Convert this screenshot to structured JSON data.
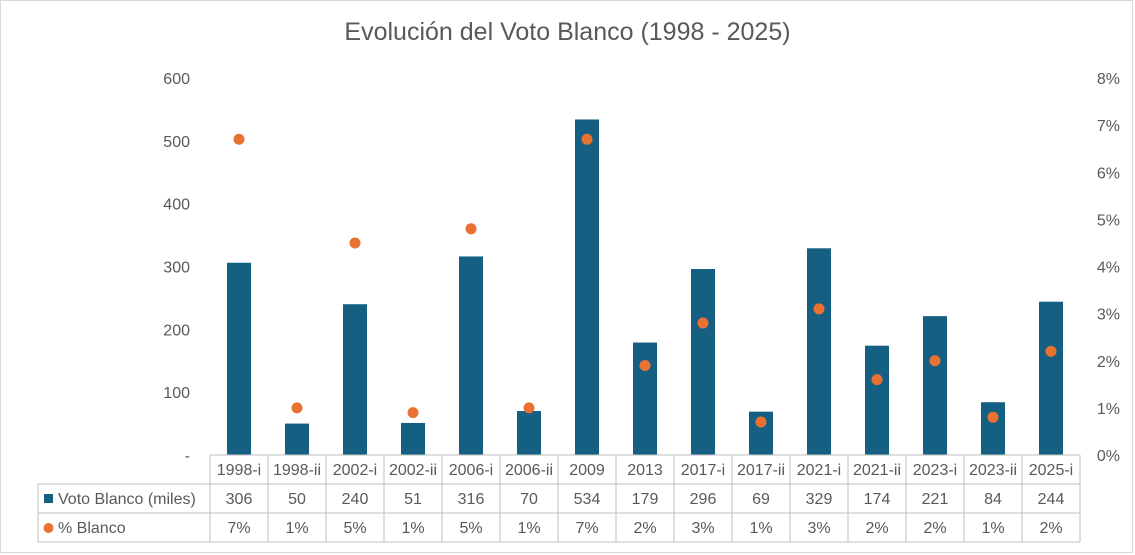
{
  "chart_data": {
    "type": "bar",
    "title": "Evolución del Voto Blanco (1998 - 2025)",
    "categories": [
      "1998-i",
      "1998-ii",
      "2002-i",
      "2002-ii",
      "2006-i",
      "2006-ii",
      "2009",
      "2013",
      "2017-i",
      "2017-ii",
      "2021-i",
      "2021-ii",
      "2023-i",
      "2023-ii",
      "2025-i"
    ],
    "series": [
      {
        "name": "Voto Blanco (miles)",
        "type": "bar",
        "axis": "left",
        "color": "#156082",
        "values": [
          306,
          50,
          240,
          51,
          316,
          70,
          534,
          179,
          296,
          69,
          329,
          174,
          221,
          84,
          244
        ],
        "table_labels": [
          "306",
          "50",
          "240",
          "51",
          "316",
          "70",
          "534",
          "179",
          "296",
          "69",
          "329",
          "174",
          "221",
          "84",
          "244"
        ]
      },
      {
        "name": "% Blanco",
        "type": "scatter",
        "axis": "right",
        "color": "#E97132",
        "values": [
          6.7,
          1.0,
          4.5,
          0.9,
          4.8,
          1.0,
          6.7,
          1.9,
          2.8,
          0.7,
          3.1,
          1.6,
          2.0,
          0.8,
          2.2
        ],
        "table_labels": [
          "7%",
          "1%",
          "5%",
          "1%",
          "5%",
          "1%",
          "7%",
          "2%",
          "3%",
          "1%",
          "3%",
          "2%",
          "2%",
          "1%",
          "2%"
        ]
      }
    ],
    "y_left": {
      "ylim": [
        0,
        600
      ],
      "ticks": [
        0,
        100,
        200,
        300,
        400,
        500,
        600
      ],
      "tick_labels": [
        "-",
        "100",
        "200",
        "300",
        "400",
        "500",
        "600"
      ]
    },
    "y_right": {
      "ylim": [
        0,
        8
      ],
      "ticks": [
        0,
        1,
        2,
        3,
        4,
        5,
        6,
        7,
        8
      ],
      "tick_labels": [
        "0%",
        "1%",
        "2%",
        "3%",
        "4%",
        "5%",
        "6%",
        "7%",
        "8%"
      ]
    },
    "data_table": true,
    "grid": false
  }
}
